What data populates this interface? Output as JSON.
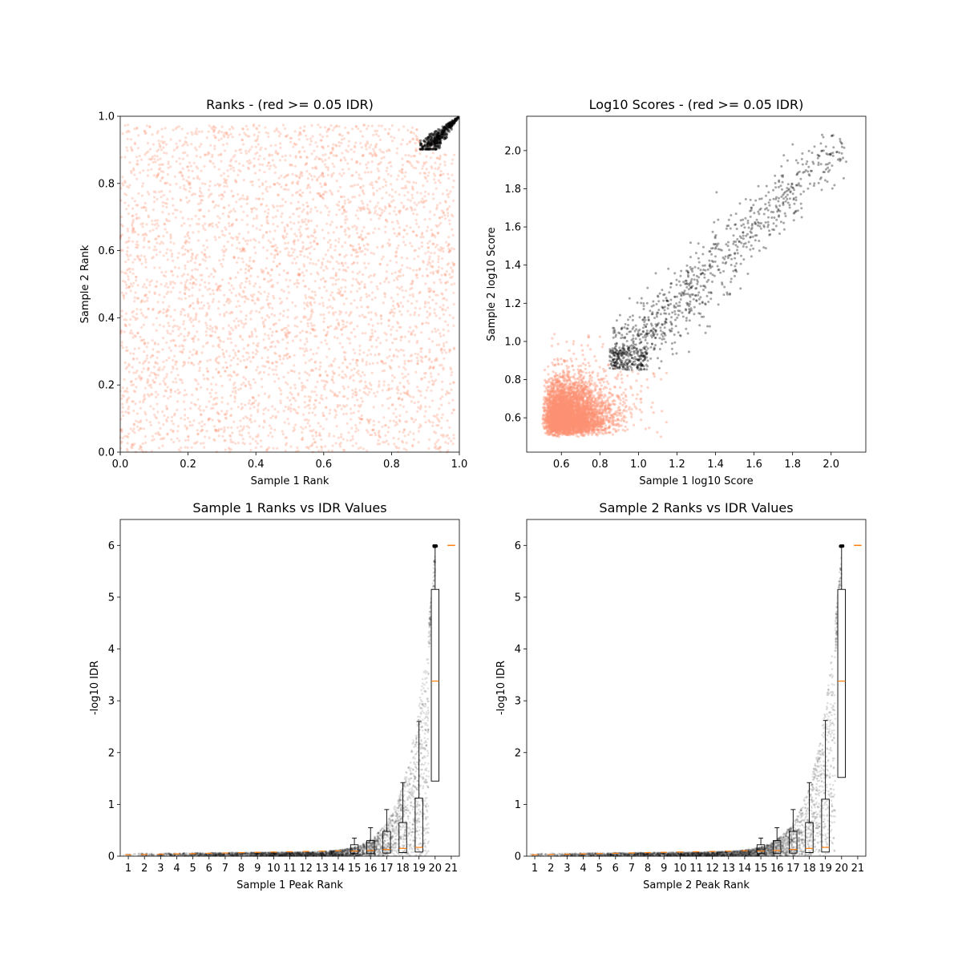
{
  "colors": {
    "low_idr": "#fc9272",
    "high_idr": "#000000",
    "median": "#ff7f0e",
    "axes": "#000000"
  },
  "chart_data": [
    {
      "id": "ranks",
      "type": "scatter",
      "title": "Ranks - (red >= 0.05 IDR)",
      "xlabel": "Sample 1 Rank",
      "ylabel": "Sample 2 Rank",
      "xlim": [
        0,
        1
      ],
      "ylim": [
        0,
        1
      ],
      "xticks": [
        "0.0",
        "0.2",
        "0.4",
        "0.6",
        "0.8",
        "1.0"
      ],
      "yticks": [
        "0.0",
        "0.2",
        "0.4",
        "0.6",
        "0.8",
        "1.0"
      ],
      "series": [
        {
          "color_role": "low_idr",
          "distribution": "uniform",
          "x_range": [
            0.0,
            0.99
          ],
          "y_range": [
            0.0,
            0.98
          ]
        },
        {
          "color_role": "high_idr",
          "distribution": "top-right corner cluster",
          "x_range": [
            0.88,
            1.0
          ],
          "y_range": [
            0.9,
            1.0
          ]
        }
      ]
    },
    {
      "id": "scores",
      "type": "scatter",
      "title": "Log10 Scores - (red >= 0.05 IDR)",
      "xlabel": "Sample 1 log10 Score",
      "ylabel": "Sample 2 log10 Score",
      "xlim": [
        0.42,
        2.18
      ],
      "ylim": [
        0.42,
        2.18
      ],
      "xticks": [
        "0.6",
        "0.8",
        "1.0",
        "1.2",
        "1.4",
        "1.6",
        "1.8",
        "2.0"
      ],
      "yticks": [
        "0.6",
        "0.8",
        "1.0",
        "1.2",
        "1.4",
        "1.6",
        "1.8",
        "2.0"
      ],
      "series": [
        {
          "color_role": "low_idr",
          "distribution": "dense block",
          "x_range": [
            0.5,
            0.95
          ],
          "y_range": [
            0.5,
            0.95
          ]
        },
        {
          "color_role": "high_idr",
          "distribution": "diagonal band",
          "x_range": [
            0.85,
            2.05
          ],
          "y_range": [
            0.85,
            2.05
          ]
        }
      ]
    },
    {
      "id": "s1_idr",
      "type": "boxplot",
      "title": "Sample 1 Ranks vs IDR Values",
      "xlabel": "Sample 1 Peak Rank",
      "ylabel": "-log10 IDR",
      "xlim": [
        0.5,
        21.5
      ],
      "ylim": [
        0,
        6.5
      ],
      "xticks": [
        "1",
        "2",
        "3",
        "4",
        "5",
        "6",
        "7",
        "8",
        "9",
        "10",
        "11",
        "12",
        "13",
        "14",
        "15",
        "16",
        "17",
        "18",
        "19",
        "20",
        "21"
      ],
      "yticks": [
        "0",
        "1",
        "2",
        "3",
        "4",
        "5",
        "6"
      ],
      "boxes": [
        {
          "pos": 15,
          "q1": 0.05,
          "median": 0.1,
          "q3": 0.22,
          "whisker_high": 0.35
        },
        {
          "pos": 16,
          "q1": 0.05,
          "median": 0.11,
          "q3": 0.3,
          "whisker_high": 0.55
        },
        {
          "pos": 17,
          "q1": 0.06,
          "median": 0.13,
          "q3": 0.48,
          "whisker_high": 0.9
        },
        {
          "pos": 18,
          "q1": 0.07,
          "median": 0.15,
          "q3": 0.65,
          "whisker_high": 1.42
        },
        {
          "pos": 19,
          "q1": 0.08,
          "median": 0.17,
          "q3": 1.12,
          "whisker_high": 2.6
        },
        {
          "pos": 20,
          "q1": 1.45,
          "median": 3.38,
          "q3": 5.15,
          "whisker_high": 6.0
        },
        {
          "pos": 21,
          "q1": 6.0,
          "median": 6.0,
          "q3": 6.0,
          "whisker_high": 6.0
        }
      ]
    },
    {
      "id": "s2_idr",
      "type": "boxplot",
      "title": "Sample 2 Ranks vs IDR Values",
      "xlabel": "Sample 2 Peak Rank",
      "ylabel": "-log10 IDR",
      "xlim": [
        0.5,
        21.5
      ],
      "ylim": [
        0,
        6.5
      ],
      "xticks": [
        "1",
        "2",
        "3",
        "4",
        "5",
        "6",
        "7",
        "8",
        "9",
        "10",
        "11",
        "12",
        "13",
        "14",
        "15",
        "16",
        "17",
        "18",
        "19",
        "20",
        "21"
      ],
      "yticks": [
        "0",
        "1",
        "2",
        "3",
        "4",
        "5",
        "6"
      ],
      "boxes": [
        {
          "pos": 15,
          "q1": 0.05,
          "median": 0.1,
          "q3": 0.22,
          "whisker_high": 0.35
        },
        {
          "pos": 16,
          "q1": 0.05,
          "median": 0.11,
          "q3": 0.3,
          "whisker_high": 0.55
        },
        {
          "pos": 17,
          "q1": 0.06,
          "median": 0.13,
          "q3": 0.48,
          "whisker_high": 0.9
        },
        {
          "pos": 18,
          "q1": 0.07,
          "median": 0.15,
          "q3": 0.65,
          "whisker_high": 1.42
        },
        {
          "pos": 19,
          "q1": 0.08,
          "median": 0.17,
          "q3": 1.1,
          "whisker_high": 2.62
        },
        {
          "pos": 20,
          "q1": 1.52,
          "median": 3.38,
          "q3": 5.15,
          "whisker_high": 6.0
        },
        {
          "pos": 21,
          "q1": 6.0,
          "median": 6.0,
          "q3": 6.0,
          "whisker_high": 6.0
        }
      ]
    }
  ]
}
